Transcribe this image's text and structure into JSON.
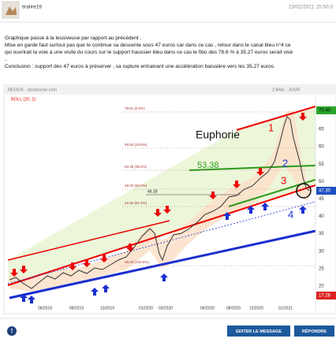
{
  "post": {
    "author": "tiralire19",
    "date": "23/02/2021 15:50:3",
    "lines": [
      "Graphique passé à la lessiveuse par rapport au précédent .",
      "Mise en garde faut surtout pas que le continue sa descente sous 47 euros car dans ce cas , retour dans le canal bleu n°4 ce",
      "qui ouvrirait la voie à une visite du cours sur le support haussier bleu dans ce cas le fibo des 78.6 % à 35.27 euros serait visé",
      "..",
      "Conclusion : support des 47 euros à préserver , sa rupture entrainant une accélération baissière vers les 35.27 euros"
    ]
  },
  "chart": {
    "source": "NEOEN - abcbourse.com",
    "indicator": "BOLL (20, 2)",
    "period": "2 ANS - JOUR",
    "fib_levels": [
      "78.51 (0.0%)",
      "58.93 (23.6%)",
      "53.38 (38.2%)",
      "48.00 (50.0%)",
      "42.60 (61.8%)",
      "26.03 (100.0%)"
    ],
    "marker": "46.18",
    "annotation": "Euphorie",
    "level": "53.38",
    "waves": [
      "1",
      "2",
      "3",
      "4"
    ],
    "high_label": "70.40",
    "last_label": "47.30",
    "low_label": "17.26",
    "y_labels": [
      "65",
      "60",
      "55",
      "50",
      "45",
      "40",
      "35",
      "30",
      "25",
      "20"
    ],
    "x_labels": [
      "06/2019",
      "08/2019",
      "10/2019",
      "01/2020",
      "03/2020",
      "06/2020",
      "08/2020",
      "10/2020",
      "01/2021"
    ]
  },
  "actions": {
    "edit": "EDITER LE MESSAGE",
    "reply": "RÉPONDRE"
  }
}
